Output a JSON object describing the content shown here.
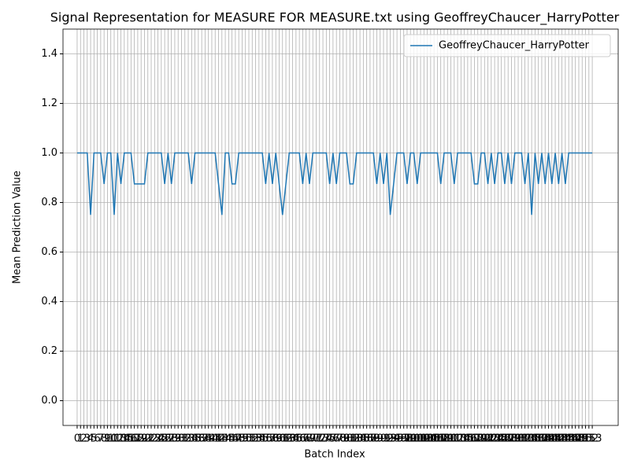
{
  "chart_data": {
    "type": "line",
    "title": "Signal Representation for MEASURE FOR MEASURE.txt using GeoffreyChaucer_HarryPotter",
    "xlabel": "Batch Index",
    "ylabel": "Mean Prediction Value",
    "x": [
      0,
      1,
      2,
      3,
      4,
      5,
      6,
      7,
      8,
      9,
      10,
      11,
      12,
      13,
      14,
      15,
      16,
      17,
      18,
      19,
      20,
      21,
      22,
      23,
      24,
      25,
      26,
      27,
      28,
      29,
      30,
      31,
      32,
      33,
      34,
      35,
      36,
      37,
      38,
      39,
      40,
      41,
      42,
      43,
      44,
      45,
      46,
      47,
      48,
      49,
      50,
      51,
      52,
      53,
      54,
      55,
      56,
      57,
      58,
      59,
      60,
      61,
      62,
      63,
      64,
      65,
      66,
      67,
      68,
      69,
      70,
      71,
      72,
      73,
      74,
      75,
      76,
      77,
      78,
      79,
      80,
      81,
      82,
      83,
      84,
      85,
      86,
      87,
      88,
      89,
      90,
      91,
      92,
      93,
      94,
      95,
      96,
      97,
      98,
      99,
      100,
      101,
      102,
      103,
      104,
      105,
      106,
      107,
      108,
      109,
      110,
      111,
      112,
      113,
      114,
      115,
      116,
      117,
      118,
      119,
      120,
      121,
      122,
      123,
      124,
      125,
      126,
      127,
      128,
      129,
      130,
      131,
      132,
      133,
      134,
      135,
      136,
      137,
      138,
      139,
      140,
      141,
      142,
      143,
      144,
      145,
      146,
      147,
      148,
      149,
      150,
      151,
      152,
      153
    ],
    "series": [
      {
        "name": "GeoffreyChaucer_HarryPotter",
        "color": "#1f77b4",
        "values": [
          1,
          1,
          1,
          1,
          0.75,
          1,
          1,
          1,
          0.875,
          1,
          1,
          0.75,
          1,
          0.875,
          1,
          1,
          1,
          0.875,
          0.875,
          0.875,
          0.875,
          1,
          1,
          1,
          1,
          1,
          0.875,
          1,
          0.875,
          1,
          1,
          1,
          1,
          1,
          0.875,
          1,
          1,
          1,
          1,
          1,
          1,
          1,
          0.875,
          0.75,
          1,
          1,
          0.875,
          0.875,
          1,
          1,
          1,
          1,
          1,
          1,
          1,
          1,
          0.875,
          1,
          0.875,
          1,
          0.875,
          0.75,
          0.875,
          1,
          1,
          1,
          1,
          0.875,
          1,
          0.875,
          1,
          1,
          1,
          1,
          1,
          0.875,
          1,
          0.875,
          1,
          1,
          1,
          0.875,
          0.875,
          1,
          1,
          1,
          1,
          1,
          1,
          0.875,
          1,
          0.875,
          1,
          0.75,
          0.875,
          1,
          1,
          1,
          0.875,
          1,
          1,
          0.875,
          1,
          1,
          1,
          1,
          1,
          1,
          0.875,
          1,
          1,
          1,
          0.875,
          1,
          1,
          1,
          1,
          1,
          0.875,
          0.875,
          1,
          1,
          0.875,
          1,
          0.875,
          1,
          1,
          0.875,
          1,
          0.875,
          1,
          1,
          1,
          0.875,
          1,
          0.75,
          1,
          0.875,
          1,
          0.875,
          1,
          0.875,
          1,
          0.875,
          1,
          0.875,
          1,
          1,
          1,
          1,
          1,
          1,
          1,
          1
        ]
      }
    ],
    "xlim": [
      -4.2,
      160.7
    ],
    "xticks": [
      0,
      1,
      2,
      3,
      4,
      5,
      6,
      7,
      8,
      9,
      10,
      11,
      12,
      13,
      14,
      15,
      16,
      17,
      18,
      19,
      20,
      21,
      22,
      23,
      24,
      25,
      26,
      27,
      28,
      29,
      30,
      31,
      32,
      33,
      34,
      35,
      36,
      37,
      38,
      39,
      40,
      41,
      42,
      43,
      44,
      45,
      46,
      47,
      48,
      49,
      50,
      51,
      52,
      53,
      54,
      55,
      56,
      57,
      58,
      59,
      60,
      61,
      62,
      63,
      64,
      65,
      66,
      67,
      68,
      69,
      70,
      71,
      72,
      73,
      74,
      75,
      76,
      77,
      78,
      79,
      80,
      81,
      82,
      83,
      84,
      85,
      86,
      87,
      88,
      89,
      90,
      91,
      92,
      93,
      94,
      95,
      96,
      97,
      98,
      99,
      100,
      101,
      102,
      103,
      104,
      105,
      106,
      107,
      108,
      109,
      110,
      111,
      112,
      113,
      114,
      115,
      116,
      117,
      118,
      119,
      120,
      121,
      122,
      123,
      124,
      125,
      126,
      127,
      128,
      129,
      130,
      131,
      132,
      133,
      134,
      135,
      136,
      137,
      138,
      139,
      140,
      141,
      142,
      143,
      144,
      145,
      146,
      147,
      148,
      149,
      150,
      151,
      152,
      153
    ],
    "ylim": [
      -0.1,
      1.5
    ],
    "yticks": [
      {
        "value": 0,
        "label": "0.0"
      },
      {
        "value": 0.2,
        "label": "0.2"
      },
      {
        "value": 0.4,
        "label": "0.4"
      },
      {
        "value": 0.6,
        "label": "0.6"
      },
      {
        "value": 0.8,
        "label": "0.8"
      },
      {
        "value": 1,
        "label": "1.0"
      },
      {
        "value": 1.2,
        "label": "1.2"
      },
      {
        "value": 1.4,
        "label": "1.4"
      }
    ],
    "grid": true,
    "legend": "upper right"
  }
}
